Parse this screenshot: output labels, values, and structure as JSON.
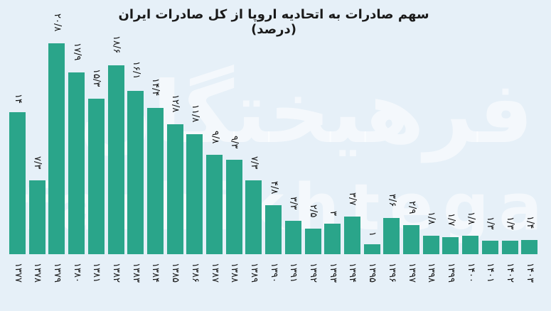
{
  "title": "سهم صادرات به اتحادیه اروپا از کل صادرات ایران (درصد)",
  "watermark": {
    "persian": "فرهیختگان",
    "latin": "farhikhtegan"
  },
  "colors": {
    "bar": "#2aa58a",
    "background": "#e6f0f8",
    "text": "#111111"
  },
  "chart_data": {
    "type": "bar",
    "title": "سهم صادرات به اتحادیه اروپا از کل صادرات ایران (درصد)",
    "xlabel": "",
    "ylabel": "درصد",
    "ylim": [
      0,
      22
    ],
    "grid": false,
    "legend": null,
    "categories": [
      "۱۳۷۷",
      "۱۳۷۸",
      "۱۳۷۹",
      "۱۳۸۰",
      "۱۳۸۱",
      "۱۳۸۲",
      "۱۳۸۳",
      "۱۳۸۴",
      "۱۳۸۵",
      "۱۳۸۶",
      "۱۳۸۷",
      "۱۳۸۸",
      "۱۳۸۹",
      "۱۳۹۰",
      "۱۳۹۱",
      "۱۳۹۲",
      "۱۳۹۳",
      "۱۳۹۴",
      "۱۳۹۵",
      "۱۳۹۶",
      "۱۳۹۷",
      "۱۳۹۸",
      "۱۳۹۹",
      "۱۴۰۰",
      "۱۴۰۱",
      "۱۴۰۲",
      "۱۴۰۳"
    ],
    "values": [
      14,
      7.3,
      20.8,
      17.9,
      15.3,
      18.6,
      16.1,
      14.4,
      12.8,
      11.8,
      9.8,
      9.3,
      7.3,
      4.8,
      3.3,
      2.5,
      3,
      3.7,
      1,
      3.6,
      2.9,
      1.8,
      1.7,
      1.8,
      1.3,
      1.3,
      1.4
    ],
    "value_labels": [
      "۱۴",
      "۷/۳",
      "۲۰/۸",
      "۱۷/۹",
      "۱۵/۳",
      "۱۸/۶",
      "۱۶/۱",
      "۱۴/۴",
      "۱۲/۸",
      "۱۱/۸",
      "۹/۸",
      "۹/۳",
      "۷/۳",
      "۴/۸",
      "۳/۳",
      "۲/۵",
      "۳",
      "۳/۷",
      "۱",
      "۳/۶",
      "۲/۹",
      "۱/۸",
      "۱/۷",
      "۱/۸",
      "۱/۳",
      "۱/۳",
      "۱/۴"
    ]
  }
}
